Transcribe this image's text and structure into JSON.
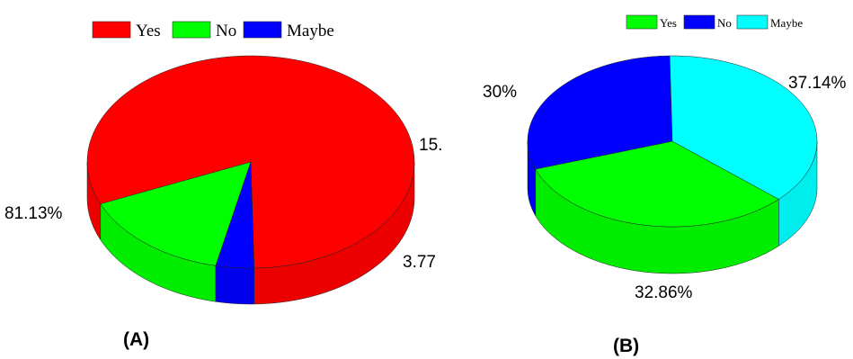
{
  "chart_data": [
    {
      "type": "pie",
      "panel_label": "(A)",
      "legend_position": "top",
      "categories": [
        "Yes",
        "No",
        "Maybe"
      ],
      "values": [
        81.13,
        15.09,
        3.77
      ],
      "colors": [
        "#ff0000",
        "#00ff00",
        "#0000ff"
      ],
      "data_labels": [
        "81.13%",
        "15.",
        "3.77"
      ]
    },
    {
      "type": "pie",
      "panel_label": "(B)",
      "legend_position": "top",
      "categories": [
        "Yes",
        "No",
        "Maybe"
      ],
      "values": [
        32.86,
        30,
        37.14
      ],
      "colors": [
        "#00ff00",
        "#0000ff",
        "#00ffff"
      ],
      "data_labels": [
        "32.86%",
        "30%",
        "37.14%"
      ]
    }
  ]
}
